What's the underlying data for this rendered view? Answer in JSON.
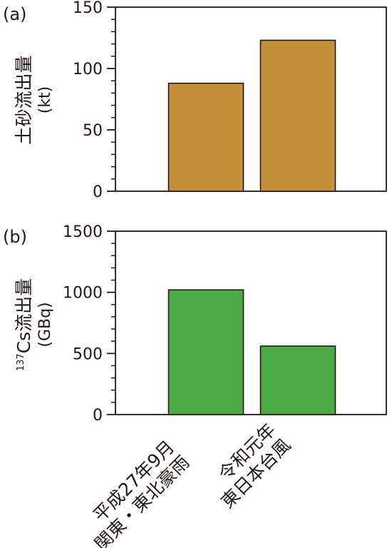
{
  "chart_data": [
    {
      "type": "bar",
      "panel_label": "(a)",
      "categories": [
        "平成27年9月 関東・東北豪雨",
        "令和元年 東日本台風"
      ],
      "values": [
        88,
        123
      ],
      "ylabel": "土砂流出量",
      "yunit": "(kt)",
      "ylim": [
        0,
        150
      ],
      "yticks": [
        0,
        50,
        100,
        150
      ],
      "bar_color": "#c4913a",
      "grid": false
    },
    {
      "type": "bar",
      "panel_label": "(b)",
      "categories": [
        "平成27年9月 関東・東北豪雨",
        "令和元年 東日本台風"
      ],
      "values": [
        1020,
        560
      ],
      "ylabel_sup": "137",
      "ylabel": "Cs流出量",
      "yunit": "(GBq)",
      "ylim": [
        0,
        1500
      ],
      "yticks": [
        0,
        500,
        1000,
        1500
      ],
      "bar_color": "#4aab45",
      "grid": false
    }
  ],
  "xaxis": {
    "category_lines": [
      [
        "平成27年9月",
        "関東・東北豪雨"
      ],
      [
        "令和元年",
        "東日本台風"
      ]
    ]
  }
}
